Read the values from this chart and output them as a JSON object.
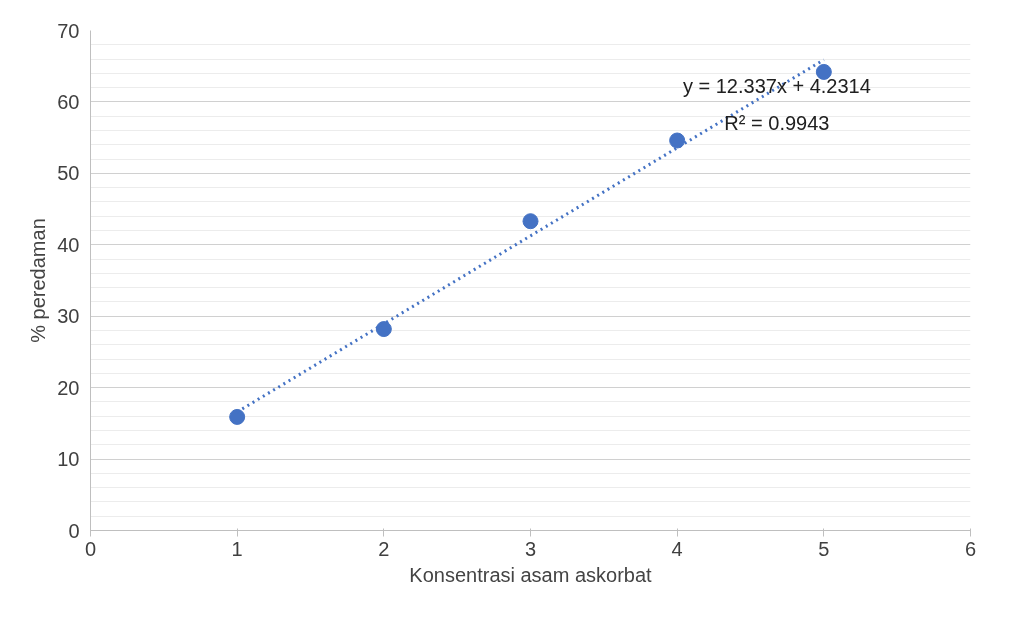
{
  "chart_data": {
    "type": "scatter",
    "xlabel": "Konsentrasi asam askorbat",
    "ylabel": "% peredaman",
    "x": [
      1,
      2,
      3,
      4,
      5
    ],
    "series": [
      {
        "color": "#4472c4",
        "values": [
          15.9,
          28.2,
          43.3,
          54.6,
          64.2
        ],
        "marker": "circle"
      },
      {
        "type": "line",
        "color": "#4472c4",
        "x": [
          1,
          5
        ],
        "values": [
          16.6,
          65.9
        ],
        "line_style": "dotted"
      }
    ],
    "annotations": [
      "y = 12.337x + 4.2314",
      "R² = 0.9943"
    ],
    "xlim": [
      0,
      6
    ],
    "xticks": [
      0,
      1,
      2,
      3,
      4,
      5,
      6
    ],
    "ylim": [
      0,
      70
    ],
    "yticks": [
      0,
      10,
      20,
      30,
      40,
      50,
      60,
      70
    ],
    "grid": "y"
  }
}
